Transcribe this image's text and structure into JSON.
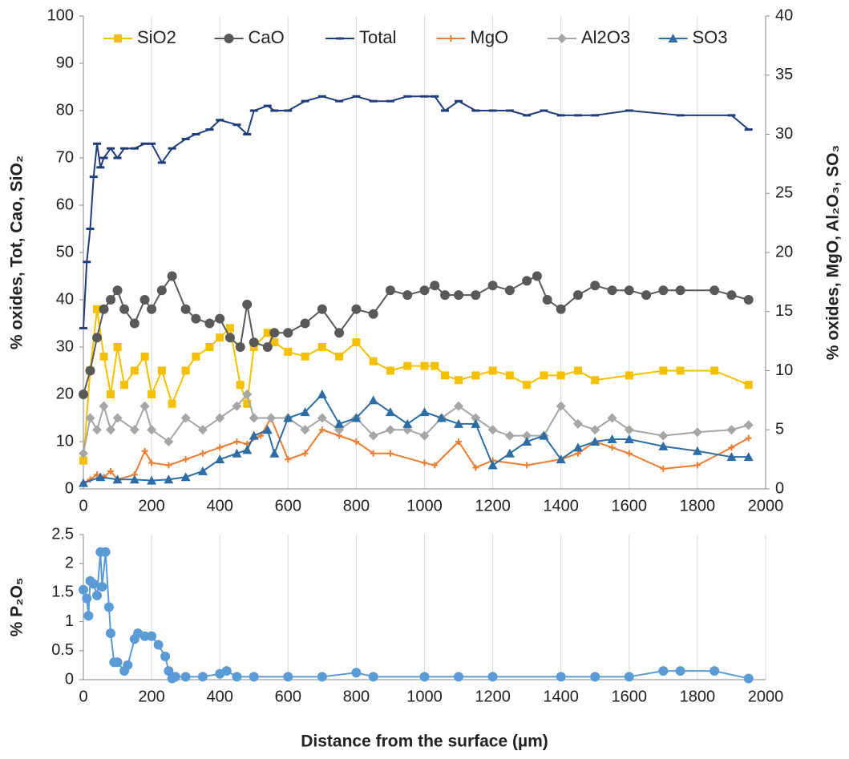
{
  "chart_data": [
    {
      "type": "line",
      "ylabel": "% oxides, Tot, Cao, SiO₂",
      "y2label": "% oxides, MgO, Al₂O₃, SO₃",
      "xlim": [
        0,
        2000
      ],
      "xticks": [
        0,
        200,
        400,
        600,
        800,
        1000,
        1200,
        1400,
        1600,
        1800,
        2000
      ],
      "ylim": [
        0,
        100
      ],
      "yticks": [
        0,
        10,
        20,
        30,
        40,
        50,
        60,
        70,
        80,
        90,
        100
      ],
      "y2lim": [
        0,
        40
      ],
      "y2ticks": [
        0,
        5,
        10,
        15,
        20,
        25,
        30,
        35,
        40
      ],
      "xgrid": true,
      "legend": "top",
      "series": [
        {
          "name": "SiO2",
          "color": "#f5c000",
          "marker": "square",
          "axis": "y",
          "x": [
            0,
            20,
            40,
            60,
            80,
            100,
            120,
            150,
            180,
            200,
            230,
            260,
            300,
            330,
            370,
            400,
            430,
            460,
            480,
            500,
            540,
            560,
            600,
            650,
            700,
            750,
            800,
            850,
            900,
            950,
            1000,
            1030,
            1060,
            1100,
            1150,
            1200,
            1250,
            1300,
            1350,
            1400,
            1450,
            1500,
            1600,
            1700,
            1750,
            1850,
            1950
          ],
          "values": [
            6,
            25,
            38,
            28,
            20,
            30,
            22,
            25,
            28,
            20,
            25,
            18,
            25,
            28,
            30,
            32,
            34,
            22,
            18,
            30,
            33,
            31,
            29,
            28,
            30,
            28,
            31,
            27,
            25,
            26,
            26,
            26,
            24,
            23,
            24,
            25,
            24,
            22,
            24,
            24,
            25,
            23,
            24,
            25,
            25,
            25,
            22
          ]
        },
        {
          "name": "CaO",
          "color": "#595959",
          "marker": "circle",
          "axis": "y",
          "x": [
            0,
            20,
            40,
            60,
            80,
            100,
            120,
            150,
            180,
            200,
            230,
            260,
            300,
            330,
            370,
            400,
            430,
            460,
            480,
            500,
            540,
            560,
            600,
            650,
            700,
            750,
            800,
            850,
            900,
            950,
            1000,
            1030,
            1060,
            1100,
            1150,
            1200,
            1250,
            1300,
            1330,
            1360,
            1400,
            1450,
            1500,
            1550,
            1600,
            1650,
            1700,
            1750,
            1850,
            1900,
            1950
          ],
          "values": [
            20,
            25,
            32,
            38,
            40,
            42,
            38,
            35,
            40,
            38,
            42,
            45,
            38,
            36,
            35,
            36,
            32,
            30,
            39,
            31,
            30,
            33,
            33,
            35,
            38,
            33,
            38,
            37,
            42,
            41,
            42,
            43,
            41,
            41,
            41,
            43,
            42,
            44,
            45,
            40,
            38,
            41,
            43,
            42,
            42,
            41,
            42,
            42,
            42,
            41,
            40
          ]
        },
        {
          "name": "Total",
          "color": "#1f3d7a",
          "marker": "dash",
          "axis": "y",
          "x": [
            0,
            10,
            20,
            30,
            40,
            50,
            60,
            80,
            100,
            120,
            150,
            180,
            200,
            230,
            260,
            300,
            330,
            370,
            400,
            450,
            480,
            500,
            540,
            560,
            600,
            650,
            700,
            750,
            800,
            850,
            900,
            950,
            1000,
            1030,
            1060,
            1100,
            1150,
            1200,
            1250,
            1300,
            1350,
            1400,
            1450,
            1500,
            1600,
            1750,
            1900,
            1950
          ],
          "values": [
            34,
            48,
            55,
            66,
            73,
            68,
            70,
            72,
            70,
            72,
            72,
            73,
            73,
            69,
            72,
            74,
            75,
            76,
            78,
            77,
            75,
            80,
            81,
            80,
            80,
            82,
            83,
            82,
            83,
            82,
            82,
            83,
            83,
            83,
            80,
            82,
            80,
            80,
            80,
            79,
            80,
            79,
            79,
            79,
            80,
            79,
            79,
            76
          ]
        },
        {
          "name": "MgO",
          "color": "#ed7d31",
          "marker": "plus",
          "axis": "y2",
          "x": [
            0,
            20,
            40,
            60,
            80,
            100,
            150,
            180,
            200,
            250,
            300,
            350,
            400,
            450,
            480,
            520,
            550,
            600,
            650,
            700,
            750,
            800,
            850,
            900,
            1000,
            1030,
            1100,
            1150,
            1200,
            1300,
            1400,
            1450,
            1500,
            1550,
            1600,
            1700,
            1800,
            1900,
            1950
          ],
          "values": [
            0.5,
            0.8,
            1.2,
            1,
            1.5,
            0.8,
            1.2,
            3.2,
            2.2,
            2,
            2.5,
            3,
            3.5,
            4,
            3.8,
            4.5,
            6,
            2.5,
            3,
            5,
            4.5,
            4,
            3,
            3,
            2.2,
            2,
            4,
            1.8,
            2.4,
            2,
            2.5,
            3,
            4,
            3.5,
            3,
            1.7,
            2,
            3.5,
            4.3
          ]
        },
        {
          "name": "Al2O3",
          "color": "#a6a6a6",
          "marker": "diamond",
          "axis": "y2",
          "x": [
            0,
            20,
            40,
            60,
            80,
            100,
            150,
            180,
            200,
            250,
            300,
            350,
            400,
            450,
            480,
            500,
            550,
            600,
            650,
            700,
            750,
            800,
            850,
            900,
            950,
            1000,
            1050,
            1100,
            1150,
            1200,
            1250,
            1300,
            1350,
            1400,
            1450,
            1500,
            1550,
            1600,
            1700,
            1800,
            1900,
            1950
          ],
          "values": [
            3,
            6,
            5,
            7,
            5,
            6,
            5,
            7,
            5,
            4,
            6,
            5,
            6,
            7,
            8,
            6,
            6,
            6,
            5,
            6,
            5,
            6,
            4.5,
            5,
            5,
            4.5,
            6,
            7,
            6,
            5,
            4.5,
            4.5,
            4.5,
            7,
            5.5,
            5,
            6,
            5,
            4.5,
            4.8,
            5,
            5.4
          ]
        },
        {
          "name": "SO3",
          "color": "#2e6da4",
          "marker": "triangle",
          "axis": "y2",
          "x": [
            0,
            50,
            100,
            150,
            200,
            250,
            300,
            350,
            400,
            450,
            480,
            500,
            540,
            560,
            600,
            650,
            700,
            750,
            800,
            850,
            900,
            950,
            1000,
            1050,
            1100,
            1150,
            1200,
            1250,
            1300,
            1350,
            1400,
            1450,
            1500,
            1550,
            1600,
            1700,
            1800,
            1900,
            1950
          ],
          "values": [
            0.5,
            1,
            0.8,
            0.8,
            0.7,
            0.8,
            1,
            1.5,
            2.5,
            3,
            3.3,
            4.5,
            5,
            3,
            6,
            6.5,
            8,
            5.5,
            6,
            7.5,
            6.5,
            5.5,
            6.5,
            6,
            5.5,
            5.5,
            2,
            3,
            4,
            4.5,
            2.5,
            3.5,
            4,
            4.2,
            4.2,
            3.6,
            3.2,
            2.7,
            2.7
          ]
        }
      ]
    },
    {
      "type": "line",
      "ylabel": "% P₂O₅",
      "xlabel": "Distance from the surface (µm)",
      "xlim": [
        0,
        2000
      ],
      "xticks": [
        0,
        200,
        400,
        600,
        800,
        1000,
        1200,
        1400,
        1600,
        1800,
        2000
      ],
      "ylim": [
        0,
        2.5
      ],
      "yticks": [
        0,
        0.5,
        1,
        1.5,
        2,
        2.5
      ],
      "xgrid": true,
      "series": [
        {
          "color": "#5b9bd5",
          "marker": "circle",
          "axis": "y",
          "x": [
            0,
            10,
            15,
            20,
            30,
            40,
            50,
            55,
            65,
            75,
            80,
            90,
            100,
            120,
            130,
            150,
            160,
            180,
            200,
            220,
            240,
            250,
            260,
            270,
            300,
            350,
            400,
            420,
            450,
            500,
            600,
            700,
            800,
            850,
            1000,
            1100,
            1200,
            1400,
            1500,
            1600,
            1700,
            1750,
            1850,
            1950
          ],
          "values": [
            1.55,
            1.4,
            1.1,
            1.7,
            1.65,
            1.45,
            2.2,
            1.6,
            2.2,
            1.25,
            0.8,
            0.3,
            0.3,
            0.15,
            0.25,
            0.7,
            0.8,
            0.75,
            0.75,
            0.6,
            0.4,
            0.15,
            0.02,
            0.05,
            0.05,
            0.05,
            0.1,
            0.15,
            0.05,
            0.05,
            0.05,
            0.05,
            0.12,
            0.05,
            0.05,
            0.05,
            0.05,
            0.05,
            0.05,
            0.05,
            0.15,
            0.15,
            0.15,
            0.02
          ]
        }
      ]
    }
  ]
}
